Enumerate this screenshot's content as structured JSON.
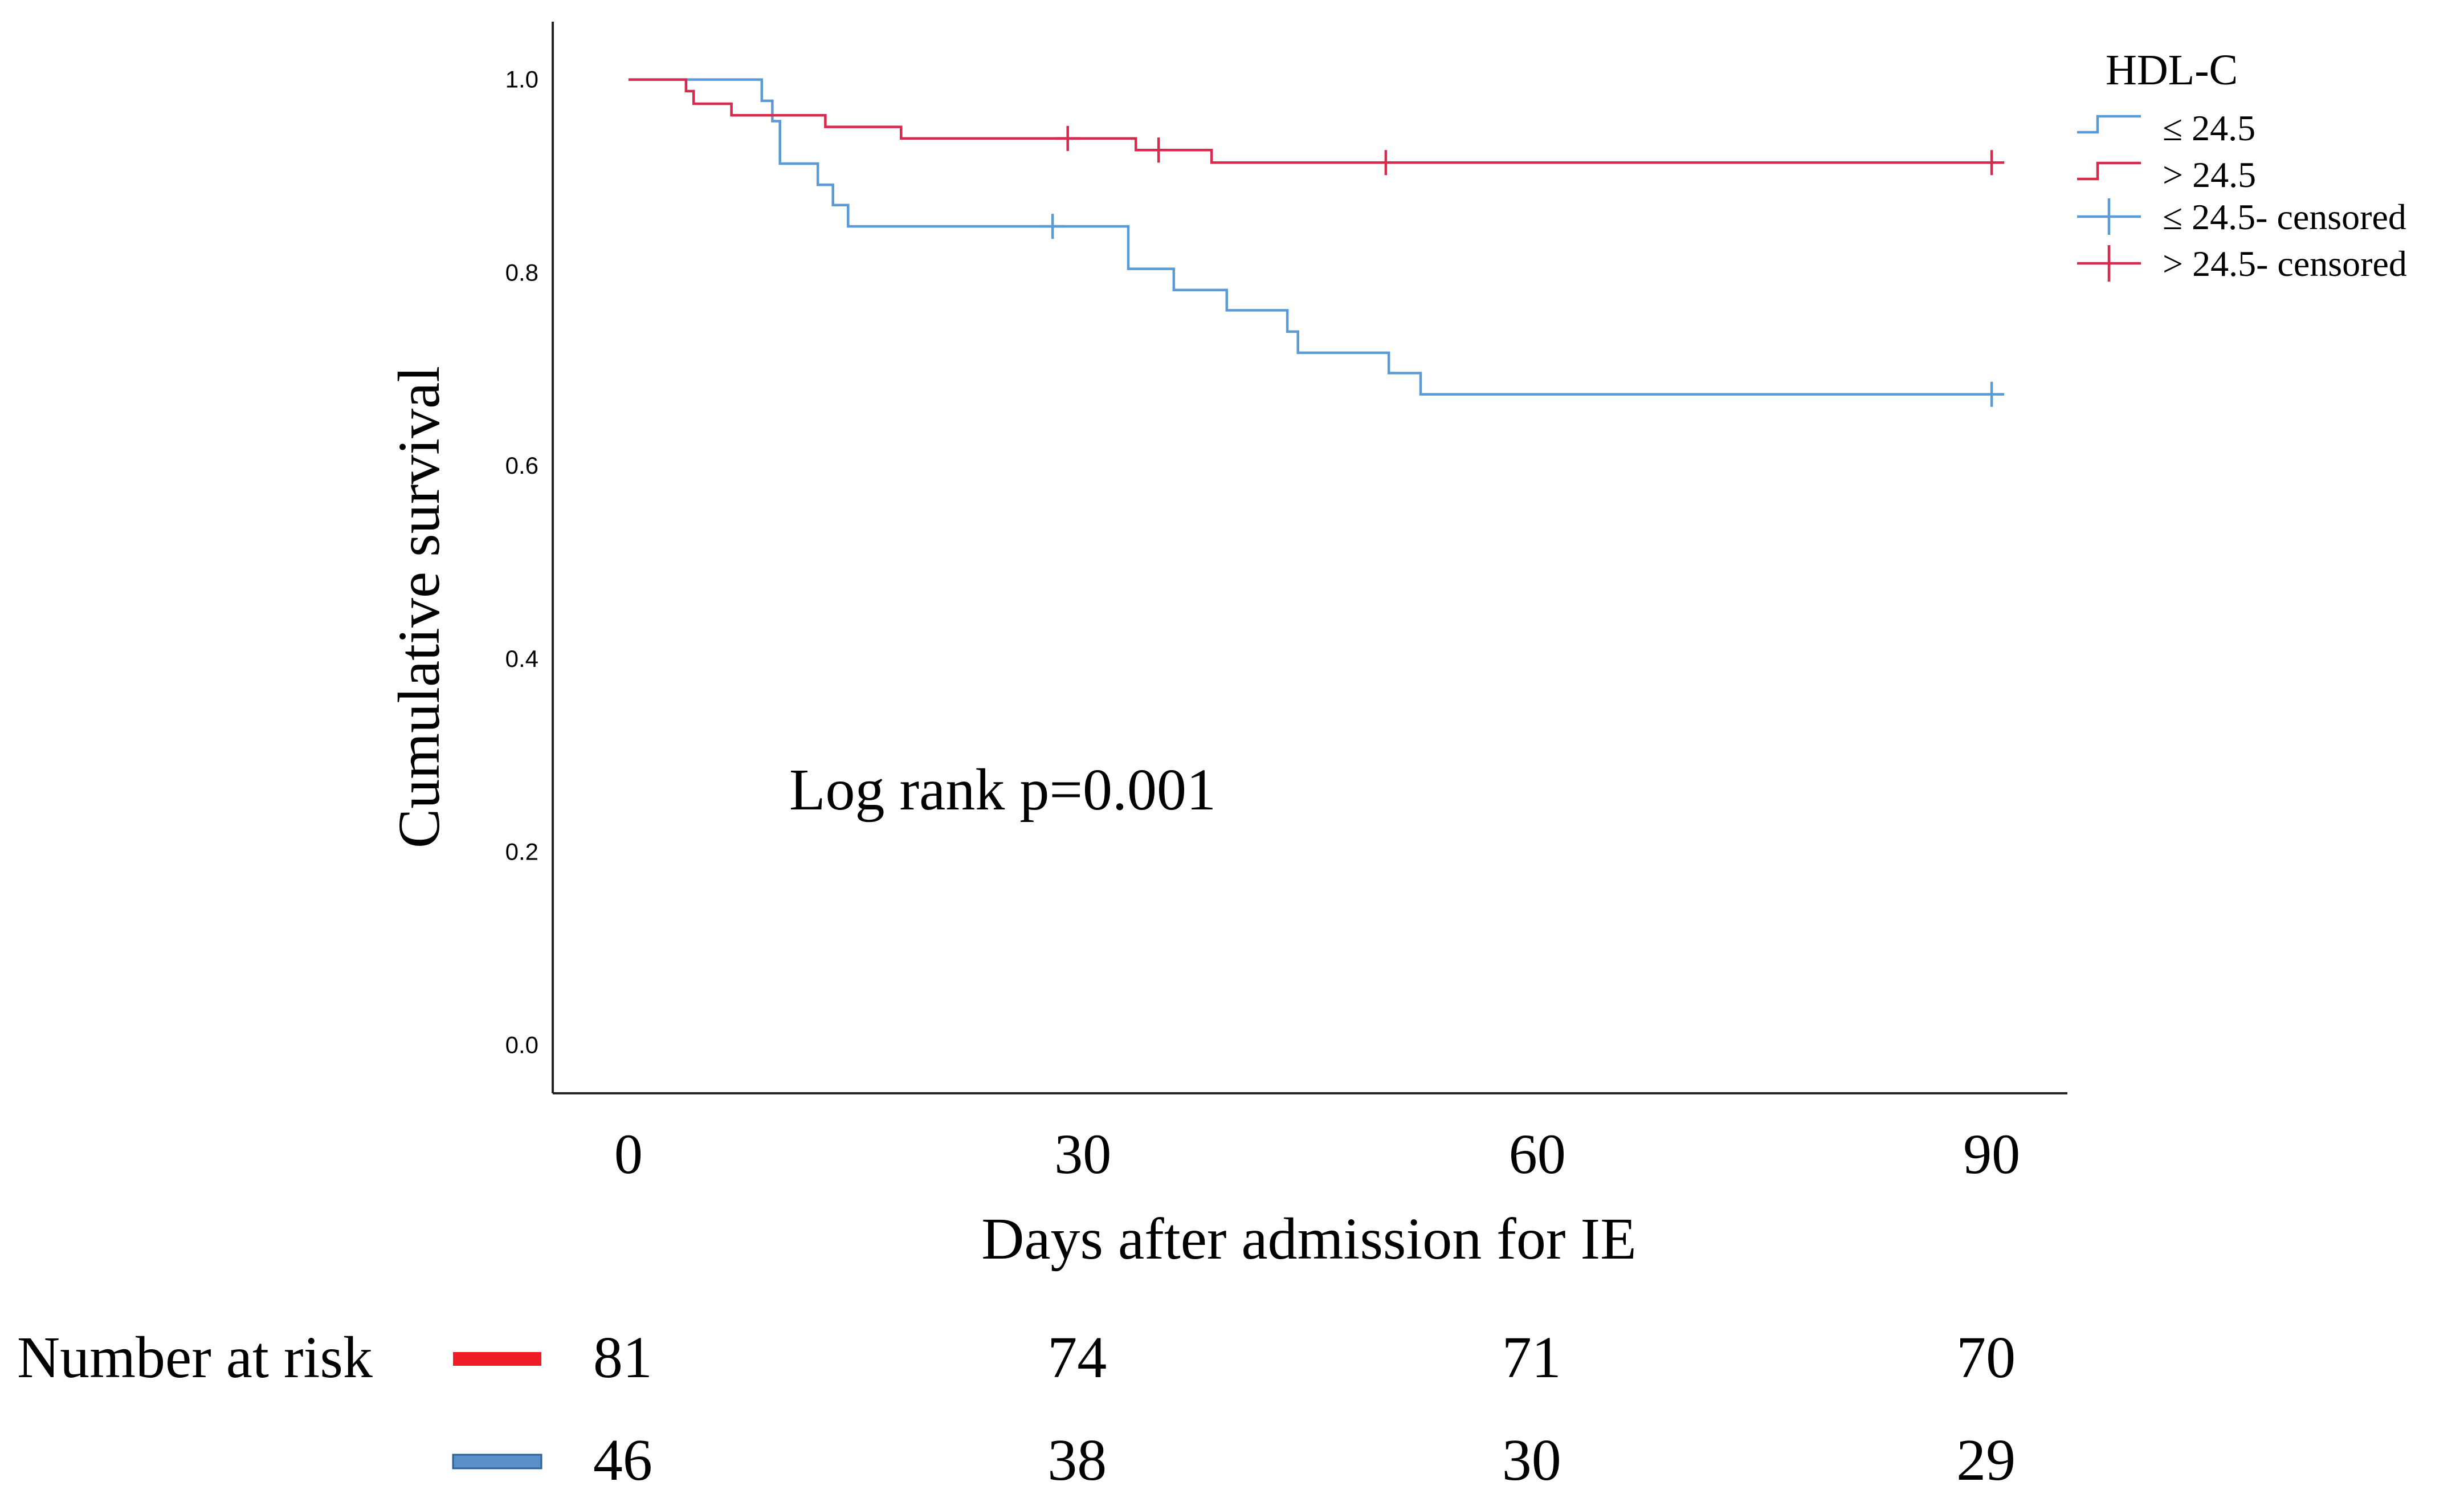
{
  "chart_data": {
    "type": "line",
    "subtype": "kaplan-meier-step",
    "title": "",
    "xlabel": "Days after admission for IE",
    "ylabel": "Cumulative survival",
    "xlim": [
      -5,
      95
    ],
    "ylim": [
      -0.05,
      1.06
    ],
    "xticks": [
      0,
      30,
      60,
      90
    ],
    "xtick_labels": [
      "0",
      "30",
      "60",
      "90"
    ],
    "yticks": [
      0,
      0.2,
      0.4,
      0.6,
      0.8,
      1.0
    ],
    "ytick_labels": [
      "0.0",
      "0.2",
      "0.4",
      "0.6",
      "0.8",
      "1.0"
    ],
    "grid": false,
    "legend_position": "top-right",
    "legend_title": "HDL-C",
    "annotation": "Log rank p=0.001",
    "series": [
      {
        "name": "≤ 24.5",
        "censored_label": "≤ 24.5- censored",
        "color": "#5b9bd5",
        "x": [
          0,
          8,
          8.8,
          9.5,
          10,
          12.5,
          13.5,
          14.5,
          15.1,
          33,
          36,
          39.5,
          43.5,
          44.2,
          50.2,
          52.3,
          90
        ],
        "y": [
          1.0,
          1.0,
          0.978,
          0.957,
          0.913,
          0.891,
          0.87,
          0.848,
          0.848,
          0.804,
          0.782,
          0.761,
          0.739,
          0.717,
          0.696,
          0.674,
          0.674
        ],
        "censored_x": [
          28,
          90
        ],
        "censored_y": [
          0.848,
          0.674
        ]
      },
      {
        "name": "> 24.5",
        "censored_label": "> 24.5- censored",
        "color": "#d62a4e",
        "x": [
          0,
          3.8,
          4.3,
          4.7,
          6.8,
          13,
          18,
          33.5,
          38.5,
          90
        ],
        "y": [
          1.0,
          0.988,
          0.975,
          0.975,
          0.963,
          0.951,
          0.939,
          0.927,
          0.914,
          0.914
        ],
        "censored_x": [
          29,
          35,
          50,
          90
        ],
        "censored_y": [
          0.939,
          0.927,
          0.914,
          0.914
        ]
      }
    ],
    "risk_table": {
      "label": "Number at risk",
      "times": [
        0,
        30,
        60,
        90
      ],
      "rows": [
        {
          "group": "> 24.5",
          "swatch_color": "#ee1c24",
          "counts": [
            "81",
            "74",
            "71",
            "70"
          ]
        },
        {
          "group": "≤ 24.5",
          "swatch_color": "#5b8fc9",
          "counts": [
            "46",
            "38",
            "30",
            "29"
          ]
        }
      ]
    }
  }
}
